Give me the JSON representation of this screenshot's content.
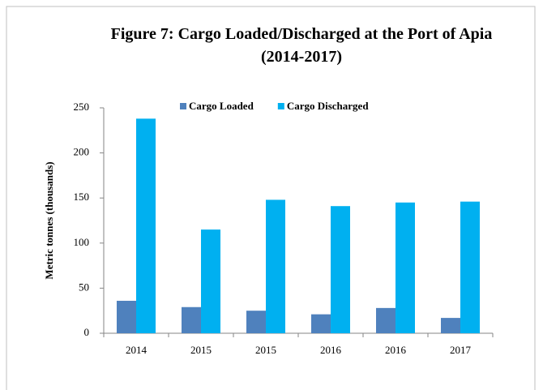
{
  "chart_data": {
    "type": "bar",
    "title": "Figure 7: Cargo Loaded/Discharged at the Port of Apia (2014-2017)",
    "y_label": "Metric tonnes (thousands)",
    "categories": [
      "2014",
      "2015",
      "2015",
      "2016",
      "2016",
      "2017"
    ],
    "series": [
      {
        "name": "Cargo Loaded",
        "color": "#4f81bd",
        "values": [
          36,
          29,
          25,
          21,
          28,
          17
        ]
      },
      {
        "name": "Cargo Discharged",
        "color": "#00b0f0",
        "values": [
          238,
          115,
          148,
          141,
          145,
          146
        ]
      }
    ],
    "ylim": [
      0,
      250
    ],
    "yticks": [
      0,
      50,
      100,
      150,
      200,
      250
    ],
    "legend": "top"
  }
}
